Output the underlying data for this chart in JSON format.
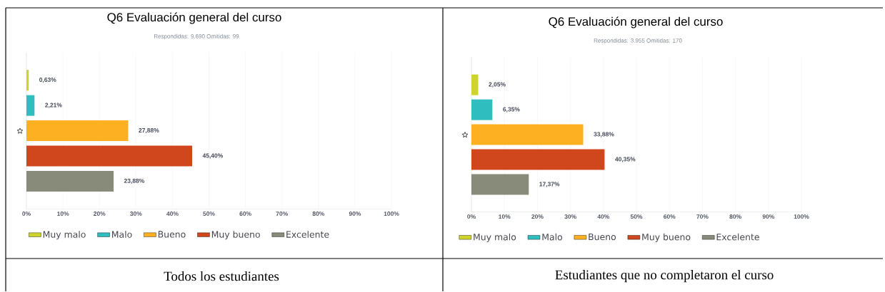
{
  "chart_data": [
    {
      "type": "bar",
      "orientation": "horizontal",
      "title": "Q6 Evaluación general del curso",
      "subtitle": "Respondidas: 9.690     Omitidas: 99",
      "categories": [
        null,
        null,
        null,
        null,
        null
      ],
      "series": [
        {
          "name": "Muy malo",
          "color": "#cfd42c",
          "values": [
            0.63,
            null,
            null,
            null,
            null
          ],
          "value_labels": [
            "0,63%",
            null,
            null,
            null,
            null
          ]
        },
        {
          "name": "Malo",
          "color": "#2fbdc0",
          "values": [
            null,
            2.21,
            null,
            null,
            null
          ],
          "value_labels": [
            null,
            "2,21%",
            null,
            null,
            null
          ]
        },
        {
          "name": "Bueno",
          "color": "#fdb022",
          "values": [
            null,
            null,
            27.88,
            null,
            null
          ],
          "value_labels": [
            null,
            null,
            "27,88%",
            null,
            null
          ]
        },
        {
          "name": "Muy bueno",
          "color": "#d0461d",
          "values": [
            null,
            null,
            null,
            45.4,
            null
          ],
          "value_labels": [
            null,
            null,
            null,
            "45,40%",
            null
          ]
        },
        {
          "name": "Excelente",
          "color": "#888a7a",
          "values": [
            null,
            null,
            null,
            null,
            23.88
          ],
          "value_labels": [
            null,
            null,
            null,
            null,
            "23,88%"
          ]
        }
      ],
      "xlim": [
        0,
        100
      ],
      "xticks": [
        {
          "value": 0,
          "label": "0%"
        },
        {
          "value": 10,
          "label": "10%"
        },
        {
          "value": 20,
          "label": "20%"
        },
        {
          "value": 30,
          "label": "30%"
        },
        {
          "value": 40,
          "label": "40%"
        },
        {
          "value": 50,
          "label": "50%"
        },
        {
          "value": 60,
          "label": "60%"
        },
        {
          "value": 70,
          "label": "70%"
        },
        {
          "value": 80,
          "label": "80%"
        },
        {
          "value": 90,
          "label": "90%"
        },
        {
          "value": 100,
          "label": "100%"
        }
      ],
      "grid": "x",
      "legend": "bottom",
      "tick_labels": "x",
      "annotations": [
        "Todos los estudiantes"
      ]
    },
    {
      "type": "bar",
      "orientation": "horizontal",
      "title": "Q6 Evaluación general del curso",
      "subtitle": "Respondidas: 3.955     Omitidas: 170",
      "categories": [
        null,
        null,
        null,
        null,
        null
      ],
      "series": [
        {
          "name": "Muy malo",
          "color": "#cfd42c",
          "values": [
            2.05,
            null,
            null,
            null,
            null
          ],
          "value_labels": [
            "2,05%",
            null,
            null,
            null,
            null
          ]
        },
        {
          "name": "Malo",
          "color": "#2fbdc0",
          "values": [
            null,
            6.35,
            null,
            null,
            null
          ],
          "value_labels": [
            null,
            "6,35%",
            null,
            null,
            null
          ]
        },
        {
          "name": "Bueno",
          "color": "#fdb022",
          "values": [
            null,
            null,
            33.88,
            null,
            null
          ],
          "value_labels": [
            null,
            null,
            "33,88%",
            null,
            null
          ]
        },
        {
          "name": "Muy bueno",
          "color": "#d0461d",
          "values": [
            null,
            null,
            null,
            40.35,
            null
          ],
          "value_labels": [
            null,
            null,
            null,
            "40,35%",
            null
          ]
        },
        {
          "name": "Excelente",
          "color": "#888a7a",
          "values": [
            null,
            null,
            null,
            null,
            17.37
          ],
          "value_labels": [
            null,
            null,
            null,
            null,
            "17,37%"
          ]
        }
      ],
      "xlim": [
        0,
        100
      ],
      "xticks": [
        {
          "value": 0,
          "label": "0%"
        },
        {
          "value": 10,
          "label": "10%"
        },
        {
          "value": 20,
          "label": "20%"
        },
        {
          "value": 30,
          "label": "30%"
        },
        {
          "value": 40,
          "label": "40%"
        },
        {
          "value": 50,
          "label": "50%"
        },
        {
          "value": 60,
          "label": "60%"
        },
        {
          "value": 70,
          "label": "70%"
        },
        {
          "value": 80,
          "label": "80%"
        },
        {
          "value": 90,
          "label": "90%"
        },
        {
          "value": 100,
          "label": "100%"
        }
      ],
      "grid": "x",
      "legend": "bottom",
      "tick_labels": "x",
      "annotations": [
        "Estudiantes que no completaron el curso"
      ]
    }
  ]
}
